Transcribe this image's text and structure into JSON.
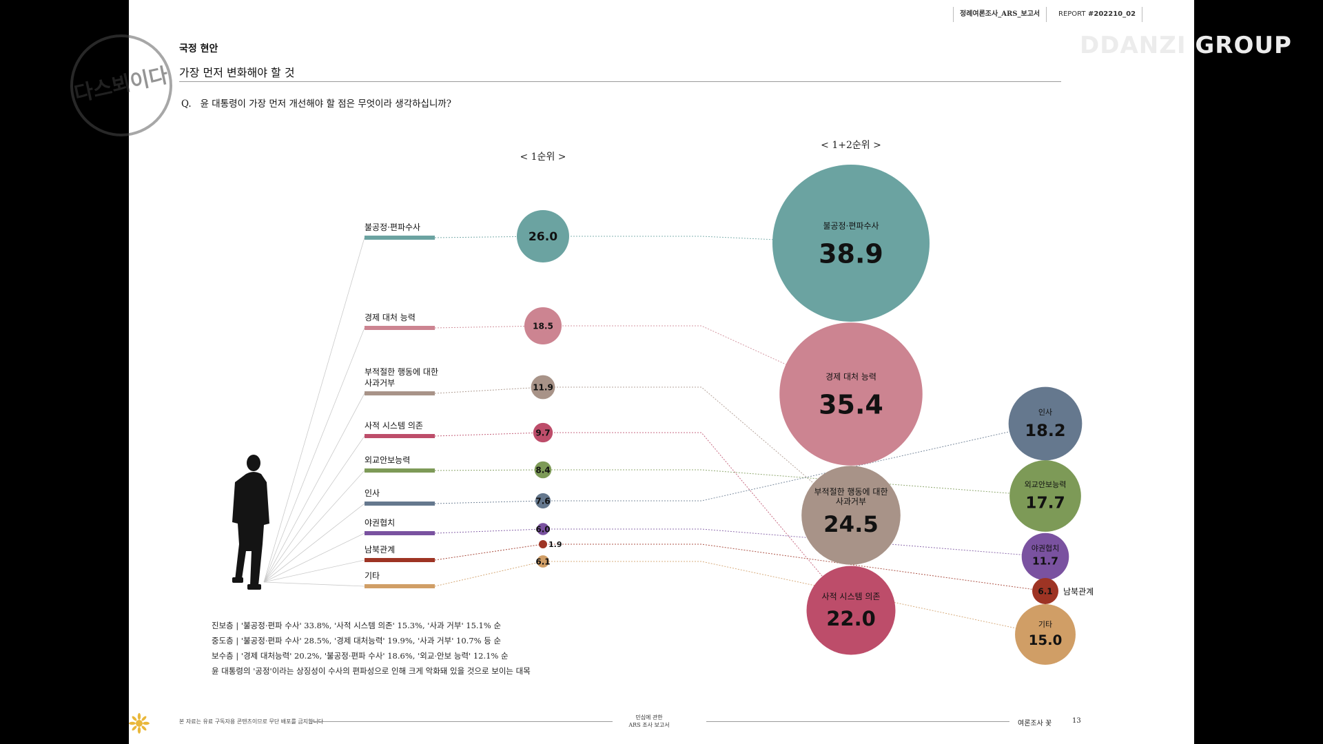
{
  "header": {
    "report_name": "정례여론조사_ARS_보고서",
    "report_prefix": "REPORT",
    "report_id": "#202210_02"
  },
  "watermark": {
    "text": "DDANZI GROUP",
    "logo_text": "다스뵈이다"
  },
  "section": {
    "title": "국정 현안",
    "subtitle": "가장 먼저 변화해야 할 것",
    "question_prefix": "Q.",
    "question": "윤 대통령이 가장 먼저 개선해야 할 점은 무엇이라 생각하십니까?"
  },
  "chart_data": [
    {
      "type": "bubble",
      "title": "< 1순위 >",
      "categories": [
        "불공정·편파수사",
        "경제 대처 능력",
        "부적절한 행동에 대한 사과거부",
        "사적 시스템 의존",
        "외교안보능력",
        "인사",
        "야권협치",
        "남북관계",
        "기타"
      ],
      "values": [
        26.0,
        18.5,
        11.9,
        9.7,
        8.4,
        7.6,
        6.0,
        1.9,
        6.1
      ],
      "value_labels": [
        "26.0",
        "18.5",
        "11.9",
        "9.7",
        "8.4",
        "7.6",
        "6.0",
        "1.9",
        "6.1"
      ],
      "colors": [
        "#6ba3a1",
        "#cc8491",
        "#a89388",
        "#bd4d6a",
        "#7d9a57",
        "#65788e",
        "#7a52a0",
        "#9e3424",
        "#d09e66"
      ]
    },
    {
      "type": "bubble",
      "title": "< 1+2순위 >",
      "categories": [
        "불공정·편파수사",
        "경제 대처 능력",
        "부적절한 행동에 대한 사과거부",
        "사적 시스템 의존",
        "인사",
        "외교안보능력",
        "야권협치",
        "남북관계",
        "기타"
      ],
      "values": [
        38.9,
        35.4,
        24.5,
        22.0,
        18.2,
        17.7,
        11.7,
        6.1,
        15.0
      ],
      "value_labels": [
        "38.9",
        "35.4",
        "24.5",
        "22.0",
        "18.2",
        "17.7",
        "11.7",
        "6.1",
        "15.0"
      ],
      "colors": [
        "#6ba3a1",
        "#cc8491",
        "#a89388",
        "#bd4d6a",
        "#65788e",
        "#7d9a57",
        "#7a52a0",
        "#9e3424",
        "#d09e66"
      ]
    }
  ],
  "legend": [
    {
      "label": "불공정·편파수사",
      "color": "#6ba3a1"
    },
    {
      "label": "경제 대처 능력",
      "color": "#cc8491"
    },
    {
      "label": "부적절한 행동에 대한 사과거부",
      "color": "#a89388"
    },
    {
      "label": "사적 시스템 의존",
      "color": "#bd4d6a"
    },
    {
      "label": "외교안보능력",
      "color": "#7d9a57"
    },
    {
      "label": "인사",
      "color": "#65788e"
    },
    {
      "label": "야권협치",
      "color": "#7a52a0"
    },
    {
      "label": "남북관계",
      "color": "#9e3424"
    },
    {
      "label": "기타",
      "color": "#d09e66"
    }
  ],
  "notes": [
    "진보층 | '불공정·편파 수사' 33.8%, '사적 시스템 의존' 15.3%, '사과 거부' 15.1% 순",
    "중도층 | '불공정·편파 수사' 28.5%, '경제 대처능력' 19.9%, '사과 거부' 10.7% 등 순",
    "보수층 | '경제 대처능력' 20.2%, '불공정·편파 수사' 18.6%, '외교·안보 능력' 12.1% 순",
    "윤 대통령의 '공정'이라는 상징성이 수사의 편파성으로 인해 크게 악화돼 있을 것으로 보이는 대목"
  ],
  "footer": {
    "left": "본 자료는 유료 구독자용 콘텐츠이므로 무단 배포를 금지합니다",
    "center_line1": "민심에 관한",
    "center_line2": "ARS 조사 보고서",
    "right": "여론조사 꽃",
    "page": "13"
  }
}
